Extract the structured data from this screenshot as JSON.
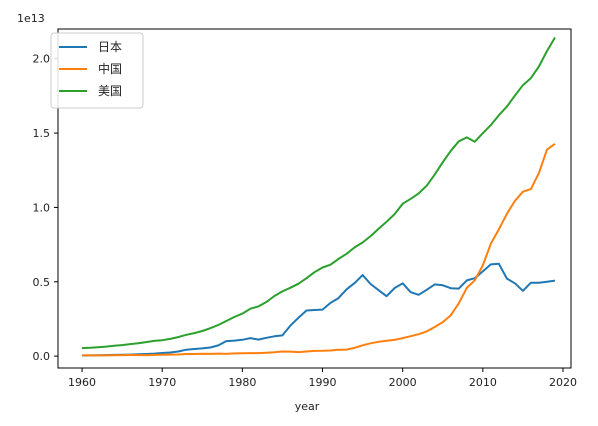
{
  "chart_data": {
    "type": "line",
    "xlabel": "year",
    "ylabel": "",
    "y_offset_label": "1e13",
    "xlim": [
      1957,
      2021
    ],
    "ylim": [
      -0.08,
      2.2
    ],
    "x_ticks": [
      1960,
      1970,
      1980,
      1990,
      2000,
      2010,
      2020
    ],
    "x_tick_labels": [
      "1960",
      "1970",
      "1980",
      "1990",
      "2000",
      "2010",
      "2020"
    ],
    "y_ticks": [
      0.0,
      0.5,
      1.0,
      1.5,
      2.0
    ],
    "y_tick_labels": [
      "0.0",
      "0.5",
      "1.0",
      "1.5",
      "2.0"
    ],
    "legend_position": "upper left",
    "grid": false,
    "series": [
      {
        "name": "日本",
        "color": "#1f77b4",
        "x": [
          1960,
          1961,
          1962,
          1963,
          1964,
          1965,
          1966,
          1967,
          1968,
          1969,
          1970,
          1971,
          1972,
          1973,
          1974,
          1975,
          1976,
          1977,
          1978,
          1979,
          1980,
          1981,
          1982,
          1983,
          1984,
          1985,
          1986,
          1987,
          1988,
          1989,
          1990,
          1991,
          1992,
          1993,
          1994,
          1995,
          1996,
          1997,
          1998,
          1999,
          2000,
          2001,
          2002,
          2003,
          2004,
          2005,
          2006,
          2007,
          2008,
          2009,
          2010,
          2011,
          2012,
          2013,
          2014,
          2015,
          2016,
          2017,
          2018,
          2019
        ],
        "values": [
          0.004,
          0.005,
          0.006,
          0.007,
          0.008,
          0.009,
          0.01,
          0.012,
          0.014,
          0.017,
          0.021,
          0.024,
          0.031,
          0.043,
          0.048,
          0.052,
          0.058,
          0.072,
          0.101,
          0.104,
          0.11,
          0.121,
          0.111,
          0.123,
          0.133,
          0.139,
          0.206,
          0.258,
          0.307,
          0.31,
          0.313,
          0.358,
          0.39,
          0.449,
          0.491,
          0.545,
          0.485,
          0.443,
          0.403,
          0.458,
          0.49,
          0.43,
          0.412,
          0.446,
          0.482,
          0.476,
          0.457,
          0.454,
          0.509,
          0.524,
          0.57,
          0.617,
          0.621,
          0.521,
          0.49,
          0.439,
          0.494,
          0.493,
          0.5,
          0.508
        ]
      },
      {
        "name": "中国",
        "color": "#ff7f0e",
        "x": [
          1960,
          1961,
          1962,
          1963,
          1964,
          1965,
          1966,
          1967,
          1968,
          1969,
          1970,
          1971,
          1972,
          1973,
          1974,
          1975,
          1976,
          1977,
          1978,
          1979,
          1980,
          1981,
          1982,
          1983,
          1984,
          1985,
          1986,
          1987,
          1988,
          1989,
          1990,
          1991,
          1992,
          1993,
          1994,
          1995,
          1996,
          1997,
          1998,
          1999,
          2000,
          2001,
          2002,
          2003,
          2004,
          2005,
          2006,
          2007,
          2008,
          2009,
          2010,
          2011,
          2012,
          2013,
          2014,
          2015,
          2016,
          2017,
          2018,
          2019
        ],
        "values": [
          0.006,
          0.005,
          0.005,
          0.005,
          0.006,
          0.007,
          0.008,
          0.007,
          0.007,
          0.008,
          0.009,
          0.01,
          0.011,
          0.014,
          0.014,
          0.016,
          0.015,
          0.017,
          0.015,
          0.018,
          0.019,
          0.02,
          0.02,
          0.023,
          0.026,
          0.031,
          0.03,
          0.027,
          0.031,
          0.035,
          0.036,
          0.038,
          0.043,
          0.044,
          0.056,
          0.073,
          0.086,
          0.096,
          0.103,
          0.109,
          0.121,
          0.134,
          0.147,
          0.166,
          0.196,
          0.229,
          0.275,
          0.355,
          0.459,
          0.51,
          0.61,
          0.755,
          0.853,
          0.957,
          1.044,
          1.106,
          1.123,
          1.231,
          1.389,
          1.428
        ]
      },
      {
        "name": "美国",
        "color": "#2ca02c",
        "x": [
          1960,
          1961,
          1962,
          1963,
          1964,
          1965,
          1966,
          1967,
          1968,
          1969,
          1970,
          1971,
          1972,
          1973,
          1974,
          1975,
          1976,
          1977,
          1978,
          1979,
          1980,
          1981,
          1982,
          1983,
          1984,
          1985,
          1986,
          1987,
          1988,
          1989,
          1990,
          1991,
          1992,
          1993,
          1994,
          1995,
          1996,
          1997,
          1998,
          1999,
          2000,
          2001,
          2002,
          2003,
          2004,
          2005,
          2006,
          2007,
          2008,
          2009,
          2010,
          2011,
          2012,
          2013,
          2014,
          2015,
          2016,
          2017,
          2018,
          2019
        ],
        "values": [
          0.054,
          0.056,
          0.06,
          0.064,
          0.069,
          0.074,
          0.081,
          0.086,
          0.094,
          0.102,
          0.107,
          0.116,
          0.128,
          0.143,
          0.155,
          0.169,
          0.188,
          0.209,
          0.236,
          0.263,
          0.286,
          0.319,
          0.334,
          0.364,
          0.404,
          0.435,
          0.46,
          0.487,
          0.524,
          0.564,
          0.596,
          0.615,
          0.654,
          0.688,
          0.731,
          0.764,
          0.807,
          0.856,
          0.903,
          0.956,
          1.025,
          1.058,
          1.094,
          1.146,
          1.221,
          1.304,
          1.381,
          1.445,
          1.471,
          1.442,
          1.499,
          1.554,
          1.62,
          1.678,
          1.752,
          1.822,
          1.87,
          1.948,
          2.052,
          2.143
        ]
      }
    ]
  }
}
